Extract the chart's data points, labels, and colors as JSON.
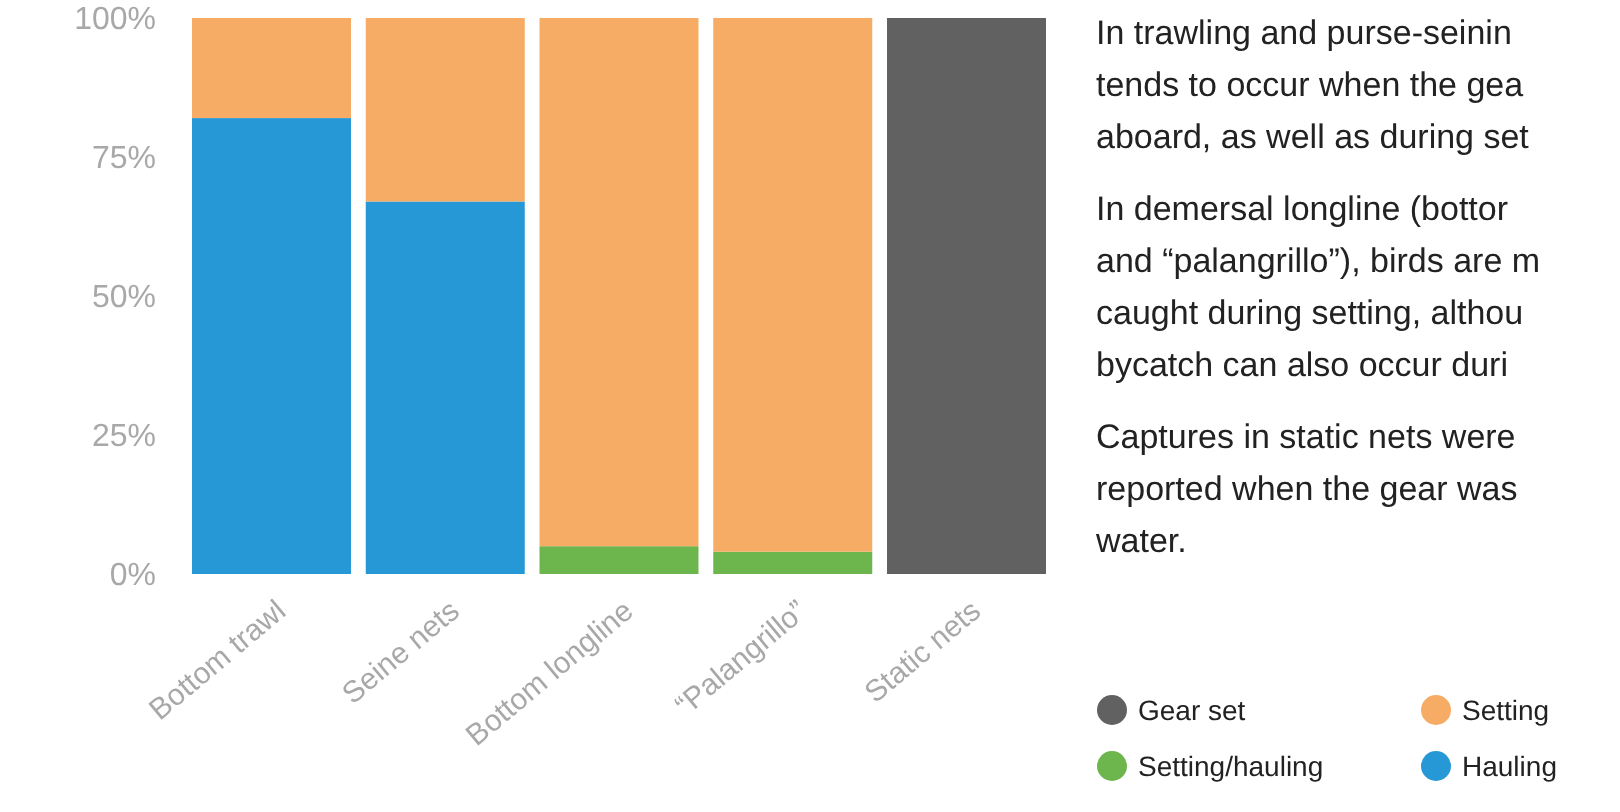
{
  "chart_data": {
    "type": "bar",
    "stacked": true,
    "categories": [
      "Bottom trawl",
      "Seine nets",
      "Bottom longline",
      "“Palangrillo”",
      "Static nets"
    ],
    "series": [
      {
        "name": "Hauling",
        "color": "#2798d6",
        "values": [
          82,
          67,
          0,
          0,
          0
        ]
      },
      {
        "name": "Setting/hauling",
        "color": "#6db64e",
        "values": [
          0,
          0,
          5,
          4,
          0
        ]
      },
      {
        "name": "Setting",
        "color": "#f6ac64",
        "values": [
          18,
          33,
          95,
          96,
          0
        ]
      },
      {
        "name": "Gear set",
        "color": "#616161",
        "values": [
          0,
          0,
          0,
          0,
          100
        ]
      }
    ],
    "ylim": [
      0,
      100
    ],
    "yticks": [
      {
        "value": 0,
        "label": "0%"
      },
      {
        "value": 25,
        "label": "25%"
      },
      {
        "value": 50,
        "label": "50%"
      },
      {
        "value": 75,
        "label": "75%"
      },
      {
        "value": 100,
        "label": "100%"
      }
    ],
    "legend": "bottom right",
    "annotations": [
      "In trawling and purse-seinin\ntends to occur when the gea\naboard, as well as during set",
      "In demersal longline (bottor\nand “palangrillo”), birds are m\ncaught during setting, althou\nbycatch can also occur duri",
      "Captures in static nets were\nreported when the gear was\nwater."
    ]
  }
}
